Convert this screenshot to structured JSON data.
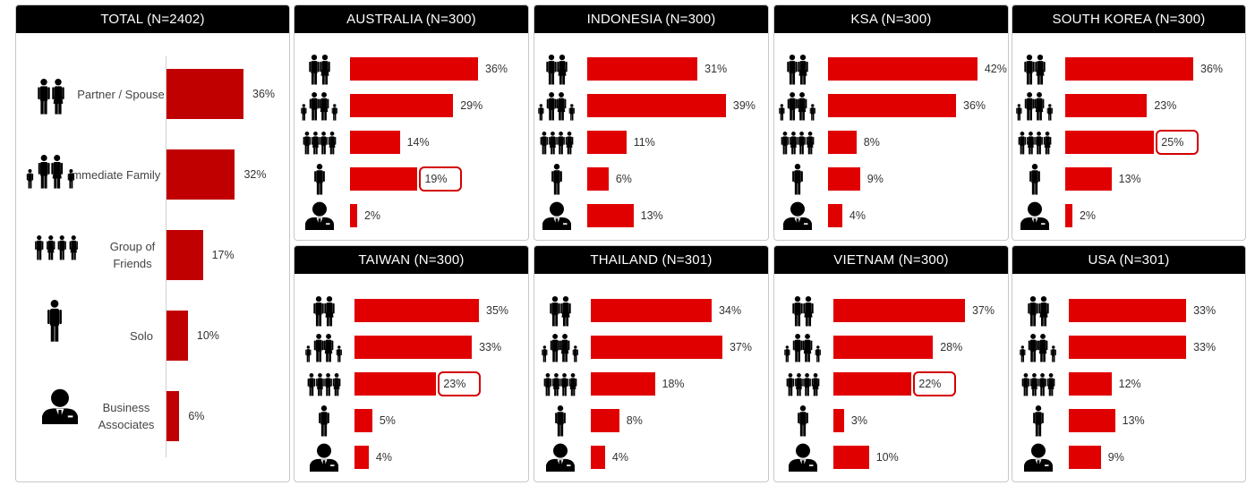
{
  "colors": {
    "bar": "#e00000",
    "total_bar": "#c00000",
    "highlight": "#d40000",
    "header_bg": "#000000",
    "header_text": "#ffffff"
  },
  "icons": [
    "couple-icon",
    "family-icon",
    "group-icon",
    "solo-icon",
    "business-icon"
  ],
  "chart_data": [
    {
      "type": "bar",
      "title": "TOTAL (N=2402)",
      "categories": [
        "Partner / Spouse",
        "Immediate Family",
        "Group of Friends",
        "Solo",
        "Business Associates"
      ],
      "values": [
        36,
        32,
        17,
        10,
        6
      ],
      "labels": [
        "36%",
        "32%",
        "17%",
        "10%",
        "6%"
      ],
      "highlight": null
    },
    {
      "type": "bar",
      "title": "AUSTRALIA (N=300)",
      "values": [
        36,
        29,
        14,
        19,
        2
      ],
      "labels": [
        "36%",
        "29%",
        "14%",
        "19%",
        "2%"
      ],
      "highlight": 3
    },
    {
      "type": "bar",
      "title": "INDONESIA (N=300)",
      "values": [
        31,
        39,
        11,
        6,
        13
      ],
      "labels": [
        "31%",
        "39%",
        "11%",
        "6%",
        "13%"
      ],
      "highlight": null
    },
    {
      "type": "bar",
      "title": "KSA (N=300)",
      "values": [
        42,
        36,
        8,
        9,
        4
      ],
      "labels": [
        "42%",
        "36%",
        "8%",
        "9%",
        "4%"
      ],
      "highlight": null
    },
    {
      "type": "bar",
      "title": "SOUTH KOREA (N=300)",
      "values": [
        36,
        23,
        25,
        13,
        2
      ],
      "labels": [
        "36%",
        "23%",
        "25%",
        "13%",
        "2%"
      ],
      "highlight": 2
    },
    {
      "type": "bar",
      "title": "TAIWAN (N=300)",
      "values": [
        35,
        33,
        23,
        5,
        4
      ],
      "labels": [
        "35%",
        "33%",
        "23%",
        "5%",
        "4%"
      ],
      "highlight": 2
    },
    {
      "type": "bar",
      "title": "THAILAND (N=301)",
      "values": [
        34,
        37,
        18,
        8,
        4
      ],
      "labels": [
        "34%",
        "37%",
        "18%",
        "8%",
        "4%"
      ],
      "highlight": null
    },
    {
      "type": "bar",
      "title": "VIETNAM (N=300)",
      "values": [
        37,
        28,
        22,
        3,
        10
      ],
      "labels": [
        "37%",
        "28%",
        "22%",
        "3%",
        "10%"
      ],
      "highlight": 2
    },
    {
      "type": "bar",
      "title": "USA (N=301)",
      "values": [
        33,
        33,
        12,
        13,
        9
      ],
      "labels": [
        "33%",
        "33%",
        "12%",
        "13%",
        "9%"
      ],
      "highlight": null
    }
  ]
}
